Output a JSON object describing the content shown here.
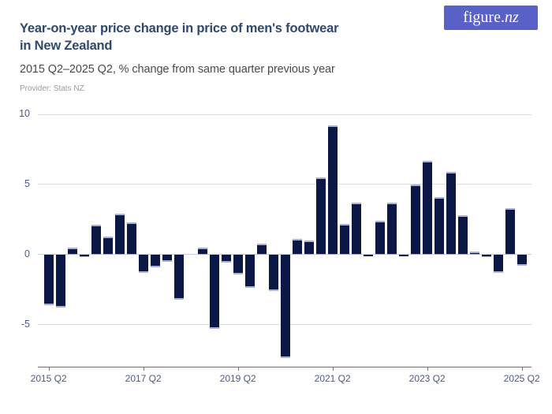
{
  "header": {
    "title_line1": "Year-on-year price change in price of men's footwear",
    "title_line2": "in New Zealand",
    "subtitle": "2015 Q2–2025 Q2, % change from same quarter previous year",
    "provider": "Provider: Stats NZ"
  },
  "logo": {
    "main": "figure.",
    "accent": "nz"
  },
  "chart_data": {
    "type": "bar",
    "title": "Year-on-year price change in price of men's footwear in New Zealand",
    "subtitle": "2015 Q2–2025 Q2, % change from same quarter previous year",
    "provider": "Stats NZ",
    "ylabel": "% change from same quarter previous year",
    "xlabel": "",
    "grid": "horizontal",
    "legend": "none",
    "ylim": [
      -8,
      10
    ],
    "y_ticks": [
      10,
      5,
      0,
      -5
    ],
    "x_tick_every": 8,
    "x_tick_labels": [
      "2015 Q2",
      "2017 Q2",
      "2019 Q2",
      "2021 Q2",
      "2023 Q2",
      "2025 Q2"
    ],
    "categories": [
      "2015 Q2",
      "2015 Q3",
      "2015 Q4",
      "2016 Q1",
      "2016 Q2",
      "2016 Q3",
      "2016 Q4",
      "2017 Q1",
      "2017 Q2",
      "2017 Q3",
      "2017 Q4",
      "2018 Q1",
      "2018 Q2",
      "2018 Q3",
      "2018 Q4",
      "2019 Q1",
      "2019 Q2",
      "2019 Q3",
      "2019 Q4",
      "2020 Q1",
      "2020 Q2",
      "2020 Q3",
      "2020 Q4",
      "2021 Q1",
      "2021 Q2",
      "2021 Q3",
      "2021 Q4",
      "2022 Q1",
      "2022 Q2",
      "2022 Q3",
      "2022 Q4",
      "2023 Q1",
      "2023 Q2",
      "2023 Q3",
      "2023 Q4",
      "2024 Q1",
      "2024 Q2",
      "2024 Q3",
      "2024 Q4",
      "2025 Q1",
      "2025 Q2"
    ],
    "values": [
      -3.6,
      -3.8,
      0.5,
      -0.2,
      2.1,
      1.3,
      2.9,
      2.3,
      -1.3,
      -0.9,
      -0.5,
      -3.2,
      0.0,
      0.5,
      -5.3,
      -0.6,
      -1.4,
      -2.4,
      0.8,
      -2.6,
      -7.4,
      1.1,
      1.0,
      5.5,
      9.2,
      2.2,
      3.7,
      -0.1,
      2.4,
      3.7,
      -0.1,
      5.0,
      6.7,
      4.1,
      5.9,
      2.8,
      0.2,
      -0.2,
      -1.3,
      3.3,
      -0.8
    ],
    "bar_color": "#0b1745",
    "bar_cap_color": "#a9b1d4"
  },
  "colors": {
    "logo_bg": "#5a61c6",
    "title": "#31486d",
    "subtitle": "#4a4a4a",
    "provider": "#9b9b9b",
    "axis_text": "#4c5a7d",
    "gridline": "#dcdcdc",
    "axis_line": "#6e6e6e"
  }
}
